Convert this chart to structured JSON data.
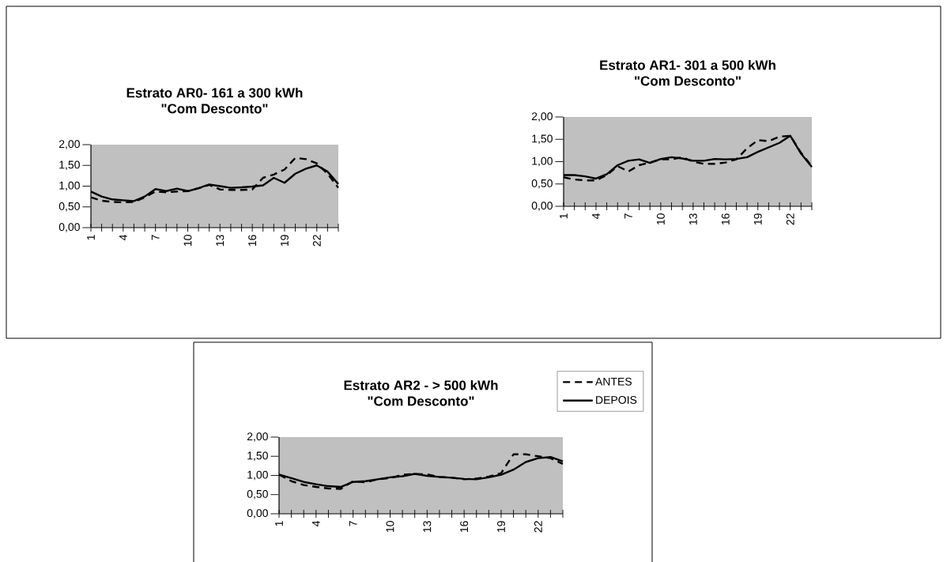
{
  "chart_data": [
    {
      "type": "line",
      "title": "Estrato AR0- 161 a 300 kWh",
      "subtitle": "\"Com Desconto\"",
      "categories": [
        "1",
        null,
        null,
        "4",
        null,
        null,
        "7",
        null,
        null,
        "10",
        null,
        null,
        "13",
        null,
        null,
        "16",
        null,
        null,
        "19",
        null,
        null,
        "22",
        null,
        null
      ],
      "series": [
        {
          "color": "#000000",
          "line_style": "dashed",
          "values": [
            0.73,
            0.65,
            0.62,
            0.61,
            0.62,
            0.73,
            0.87,
            0.85,
            0.87,
            0.88,
            0.95,
            1.03,
            0.92,
            0.91,
            0.91,
            0.92,
            1.2,
            1.28,
            1.4,
            1.68,
            1.65,
            1.55,
            1.3,
            0.96
          ]
        },
        {
          "color": "#000000",
          "line_style": "solid",
          "values": [
            0.87,
            0.75,
            0.68,
            0.66,
            0.64,
            0.75,
            0.93,
            0.88,
            0.94,
            0.88,
            0.95,
            1.04,
            1.0,
            0.96,
            0.97,
            0.99,
            1.02,
            1.2,
            1.08,
            1.3,
            1.42,
            1.5,
            1.35,
            1.05
          ]
        }
      ],
      "ylim": [
        0,
        2
      ],
      "yticks": [
        {
          "value": 0,
          "label": "0,00"
        },
        {
          "value": 0.5,
          "label": "0,50"
        },
        {
          "value": 1,
          "label": "1,00"
        },
        {
          "value": 1.5,
          "label": "1,50"
        },
        {
          "value": 2,
          "label": "2,00"
        }
      ],
      "grid": false,
      "legend": false
    },
    {
      "type": "line",
      "title": "Estrato AR1- 301 a 500 kWh",
      "subtitle": "\"Com Desconto\"",
      "categories": [
        "1",
        null,
        null,
        "4",
        null,
        null,
        "7",
        null,
        null,
        "10",
        null,
        null,
        "13",
        null,
        null,
        "16",
        null,
        null,
        "19",
        null,
        null,
        "22",
        null,
        null
      ],
      "series": [
        {
          "color": "#000000",
          "line_style": "dashed",
          "values": [
            0.65,
            0.6,
            0.58,
            0.58,
            0.7,
            0.9,
            0.78,
            0.92,
            0.98,
            1.05,
            1.05,
            1.1,
            1.0,
            0.95,
            0.95,
            0.98,
            1.05,
            1.3,
            1.48,
            1.46,
            1.56,
            1.58,
            1.2,
            0.9
          ]
        },
        {
          "color": "#000000",
          "line_style": "solid",
          "values": [
            0.7,
            0.7,
            0.67,
            0.62,
            0.72,
            0.92,
            1.02,
            1.05,
            0.97,
            1.06,
            1.1,
            1.07,
            1.02,
            1.02,
            1.06,
            1.05,
            1.06,
            1.1,
            1.22,
            1.32,
            1.42,
            1.58,
            1.18,
            0.88
          ]
        }
      ],
      "ylim": [
        0,
        2
      ],
      "yticks": [
        {
          "value": 0,
          "label": "0,00"
        },
        {
          "value": 0.5,
          "label": "0,50"
        },
        {
          "value": 1,
          "label": "1,00"
        },
        {
          "value": 1.5,
          "label": "1,50"
        },
        {
          "value": 2,
          "label": "2,00"
        }
      ],
      "grid": false,
      "legend": false
    },
    {
      "type": "line",
      "title": "Estrato AR2 - > 500 kWh",
      "subtitle": "\"Com Desconto\"",
      "categories": [
        "1",
        null,
        null,
        "4",
        null,
        null,
        "7",
        null,
        null,
        "10",
        null,
        null,
        "13",
        null,
        null,
        "16",
        null,
        null,
        "19",
        null,
        null,
        "22",
        null,
        null
      ],
      "series": [
        {
          "name": "ANTES",
          "color": "#000000",
          "line_style": "dashed",
          "values": [
            1.02,
            0.85,
            0.75,
            0.7,
            0.66,
            0.65,
            0.85,
            0.82,
            0.9,
            0.93,
            1.02,
            1.04,
            1.03,
            0.96,
            0.94,
            0.9,
            0.92,
            0.97,
            1.06,
            1.55,
            1.55,
            1.5,
            1.45,
            1.3
          ]
        },
        {
          "name": "DEPOIS",
          "color": "#000000",
          "line_style": "solid",
          "values": [
            1.02,
            0.93,
            0.83,
            0.77,
            0.72,
            0.7,
            0.83,
            0.85,
            0.9,
            0.95,
            0.98,
            1.04,
            0.99,
            0.96,
            0.94,
            0.91,
            0.9,
            0.95,
            1.02,
            1.15,
            1.35,
            1.45,
            1.48,
            1.37
          ]
        }
      ],
      "ylim": [
        0,
        2
      ],
      "yticks": [
        {
          "value": 0,
          "label": "0,00"
        },
        {
          "value": 0.5,
          "label": "0,50"
        },
        {
          "value": 1,
          "label": "1,00"
        },
        {
          "value": 1.5,
          "label": "1,50"
        },
        {
          "value": 2,
          "label": "2,00"
        }
      ],
      "grid": false,
      "legend": "top right"
    }
  ]
}
